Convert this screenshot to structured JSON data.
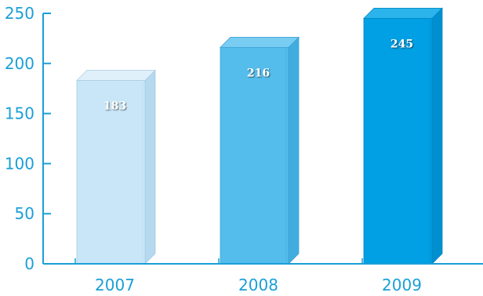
{
  "chart_data": {
    "type": "bar",
    "categories": [
      "2007",
      "2008",
      "2009"
    ],
    "values": [
      183,
      216,
      245
    ],
    "data_labels": [
      "183",
      "216",
      "245"
    ],
    "ylim": [
      0,
      250
    ],
    "yticks": [
      0,
      50,
      100,
      150,
      200,
      250
    ],
    "ytick_labels": [
      "0",
      "50",
      "100",
      "150",
      "200",
      "250"
    ],
    "grid": false,
    "title": "",
    "xlabel": "",
    "ylabel": "",
    "colors": {
      "axis": "#1a9fd8",
      "tick_text": "#1a9fd8",
      "bar_label": "#ffffff",
      "bars": [
        {
          "front": "#c8e6f8",
          "side": "#b5d9ee",
          "top": "#dff0fb",
          "edge": "#a9cde4"
        },
        {
          "front": "#55bdec",
          "side": "#41addf",
          "top": "#79cdf2",
          "edge": "#3aa0d3"
        },
        {
          "front": "#019fe3",
          "side": "#0090d0",
          "top": "#2bb3ec",
          "edge": "#0085c2"
        }
      ]
    }
  }
}
